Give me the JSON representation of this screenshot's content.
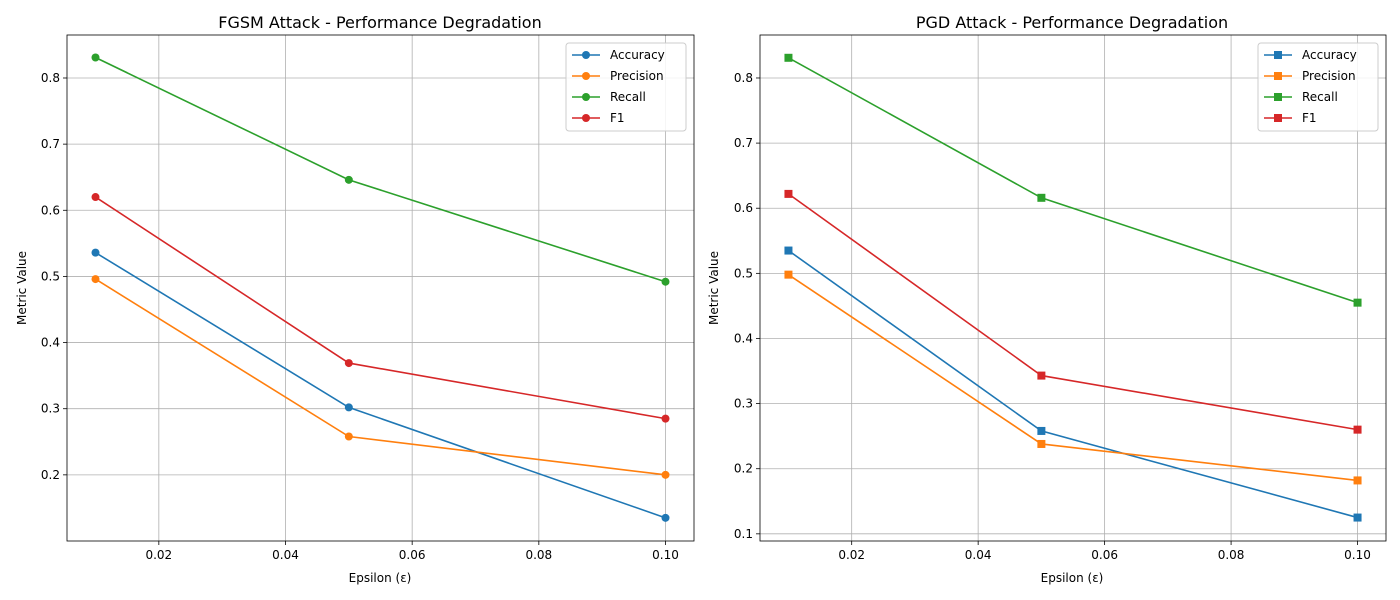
{
  "chart_data": [
    {
      "type": "line",
      "title": "FGSM Attack - Performance Degradation",
      "xlabel": "Epsilon (ε)",
      "ylabel": "Metric Value",
      "x": [
        0.01,
        0.05,
        0.1
      ],
      "xlim": [
        0.0055,
        0.1045
      ],
      "ylim": [
        0.1,
        0.865
      ],
      "xticks": [
        0.02,
        0.04,
        0.06,
        0.08,
        0.1
      ],
      "xtick_labels": [
        "0.02",
        "0.04",
        "0.06",
        "0.08",
        "0.10"
      ],
      "yticks": [
        0.2,
        0.3,
        0.4,
        0.5,
        0.6,
        0.7,
        0.8
      ],
      "ytick_labels": [
        "0.2",
        "0.3",
        "0.4",
        "0.5",
        "0.6",
        "0.7",
        "0.8"
      ],
      "marker": "circle",
      "grid": true,
      "legend": "top-right",
      "series": [
        {
          "name": "Accuracy",
          "color": "#1f77b4",
          "values": [
            0.536,
            0.302,
            0.135
          ]
        },
        {
          "name": "Precision",
          "color": "#ff7f0e",
          "values": [
            0.496,
            0.258,
            0.2
          ]
        },
        {
          "name": "Recall",
          "color": "#2ca02c",
          "values": [
            0.831,
            0.646,
            0.492
          ]
        },
        {
          "name": "F1",
          "color": "#d62728",
          "values": [
            0.62,
            0.369,
            0.285
          ]
        }
      ]
    },
    {
      "type": "line",
      "title": "PGD Attack - Performance Degradation",
      "xlabel": "Epsilon (ε)",
      "ylabel": "Metric Value",
      "x": [
        0.01,
        0.05,
        0.1
      ],
      "xlim": [
        0.0055,
        0.1045
      ],
      "ylim": [
        0.089,
        0.866
      ],
      "xticks": [
        0.02,
        0.04,
        0.06,
        0.08,
        0.1
      ],
      "xtick_labels": [
        "0.02",
        "0.04",
        "0.06",
        "0.08",
        "0.10"
      ],
      "yticks": [
        0.1,
        0.2,
        0.3,
        0.4,
        0.5,
        0.6,
        0.7,
        0.8
      ],
      "ytick_labels": [
        "0.1",
        "0.2",
        "0.3",
        "0.4",
        "0.5",
        "0.6",
        "0.7",
        "0.8"
      ],
      "marker": "square",
      "grid": true,
      "legend": "top-right",
      "series": [
        {
          "name": "Accuracy",
          "color": "#1f77b4",
          "values": [
            0.535,
            0.258,
            0.125
          ]
        },
        {
          "name": "Precision",
          "color": "#ff7f0e",
          "values": [
            0.498,
            0.238,
            0.182
          ]
        },
        {
          "name": "Recall",
          "color": "#2ca02c",
          "values": [
            0.831,
            0.616,
            0.455
          ]
        },
        {
          "name": "F1",
          "color": "#d62728",
          "values": [
            0.622,
            0.343,
            0.26
          ]
        }
      ]
    }
  ]
}
